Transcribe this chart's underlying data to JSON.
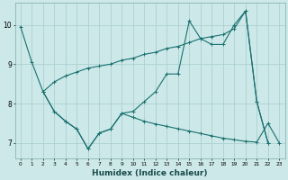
{
  "xlabel": "Humidex (Indice chaleur)",
  "bg_color": "#cce8e8",
  "line_color": "#1a7070",
  "xlim": [
    -0.5,
    23.5
  ],
  "ylim": [
    6.6,
    10.55
  ],
  "line1_x": [
    0,
    1,
    2,
    3,
    4,
    5,
    6,
    7,
    8,
    9,
    10,
    11,
    12,
    13,
    14,
    15,
    16,
    17,
    18,
    19,
    20,
    21,
    22
  ],
  "line1_y": [
    9.95,
    9.05,
    8.3,
    7.8,
    7.55,
    7.35,
    6.85,
    7.25,
    7.35,
    7.75,
    7.8,
    8.05,
    8.3,
    8.75,
    8.75,
    10.1,
    9.65,
    9.5,
    9.5,
    10.0,
    10.35,
    8.05,
    7.0
  ],
  "line2_x": [
    2,
    3,
    4,
    5,
    6,
    7,
    8,
    9,
    10,
    11,
    12,
    13,
    14,
    15,
    16,
    17,
    18,
    19,
    20,
    21,
    22
  ],
  "line2_y": [
    8.3,
    8.55,
    8.7,
    8.8,
    8.9,
    8.95,
    9.0,
    9.1,
    9.15,
    9.25,
    9.3,
    9.4,
    9.45,
    9.55,
    9.65,
    9.7,
    9.75,
    9.9,
    10.35,
    8.05,
    7.0
  ],
  "line3_x": [
    2,
    3,
    4,
    5,
    6,
    7,
    8,
    9,
    10,
    11,
    12,
    13,
    14,
    15,
    16,
    17,
    18,
    19,
    20,
    21,
    22,
    23
  ],
  "line3_y": [
    8.3,
    7.8,
    7.55,
    7.35,
    6.85,
    7.25,
    7.35,
    7.75,
    7.65,
    7.55,
    7.48,
    7.42,
    7.36,
    7.3,
    7.24,
    7.18,
    7.12,
    7.08,
    7.04,
    7.02,
    7.5,
    7.0
  ],
  "yticks": [
    7,
    8,
    9,
    10
  ],
  "xticks": [
    0,
    1,
    2,
    3,
    4,
    5,
    6,
    7,
    8,
    9,
    10,
    11,
    12,
    13,
    14,
    15,
    16,
    17,
    18,
    19,
    20,
    21,
    22,
    23
  ]
}
